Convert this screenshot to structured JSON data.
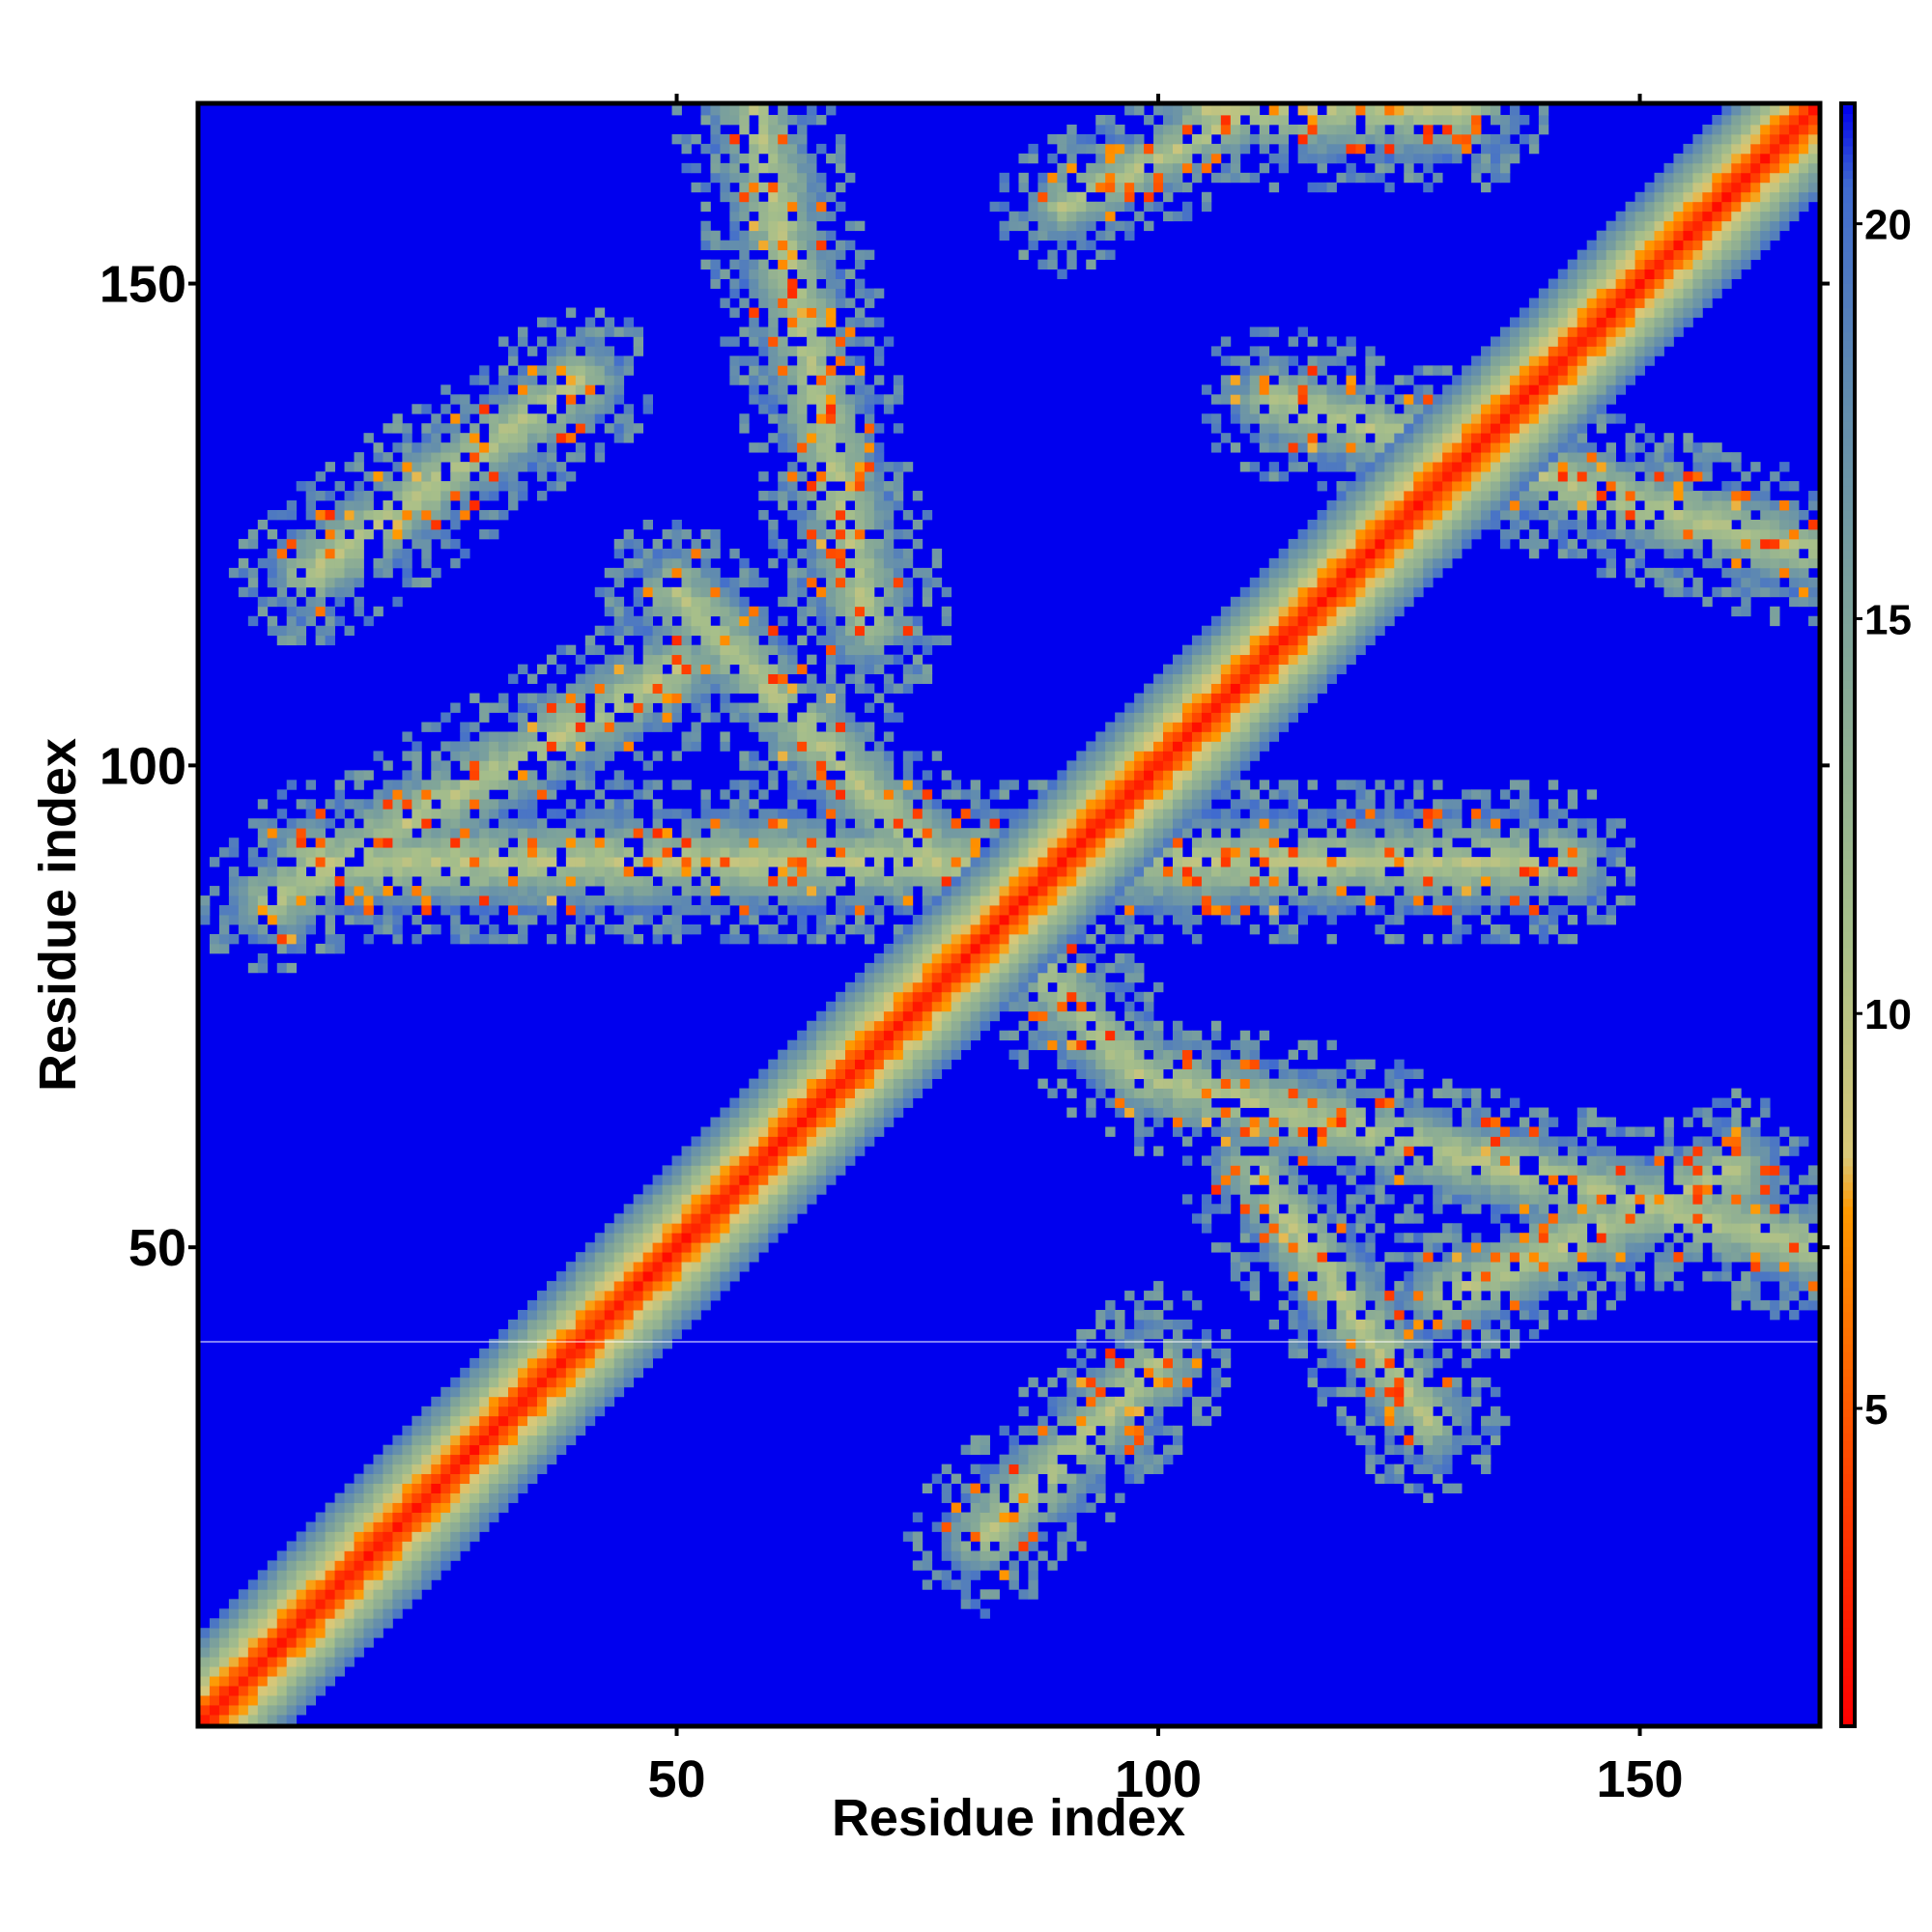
{
  "chart_data": {
    "type": "heatmap",
    "title": "",
    "xlabel": "Residue index",
    "ylabel": "Residue index",
    "xlim": [
      1,
      168
    ],
    "ylim": [
      1,
      168
    ],
    "x_ticks": [
      50,
      100,
      150
    ],
    "y_ticks": [
      50,
      100,
      150
    ],
    "x_tick_labels": [
      "50",
      "100",
      "150"
    ],
    "y_tick_labels": [
      "50",
      "100",
      "150"
    ],
    "n_residues": 168,
    "colorbar": {
      "range": [
        1,
        21.5
      ],
      "ticks": [
        5,
        10,
        15,
        20
      ],
      "tick_labels": [
        "5",
        "10",
        "15",
        "20"
      ],
      "colors": [
        {
          "value": 1,
          "color": "#ff0000"
        },
        {
          "value": 4,
          "color": "#ff4000"
        },
        {
          "value": 7.5,
          "color": "#ff9900"
        },
        {
          "value": 8.2,
          "color": "#d9c878"
        },
        {
          "value": 11,
          "color": "#a7bf8a"
        },
        {
          "value": 15,
          "color": "#7ea39a"
        },
        {
          "value": 18,
          "color": "#5f8ab0"
        },
        {
          "value": 20.5,
          "color": "#3f6ad0"
        },
        {
          "value": 21.5,
          "color": "#0000ee"
        }
      ]
    },
    "background_color": "#0000ee",
    "diagonal_band_halfwidth": 9,
    "contact_bands": [
      {
        "a": [
          58,
          168
        ],
        "b": [
          70,
          115
        ],
        "halfwidth": 5
      },
      {
        "a": [
          105,
          168
        ],
        "b": [
          132,
          168
        ],
        "halfwidth": 5
      },
      {
        "a": [
          12,
          90
        ],
        "b": [
          142,
          90
        ],
        "halfwidth": 5
      },
      {
        "a": [
          50,
          118
        ],
        "b": [
          98,
          68
        ],
        "halfwidth": 4.5
      },
      {
        "a": [
          98,
          68
        ],
        "b": [
          168,
          50
        ],
        "halfwidth": 4.5
      },
      {
        "a": [
          110,
          58
        ],
        "b": [
          128,
          32
        ],
        "halfwidth": 4.5
      },
      {
        "a": [
          130,
          45
        ],
        "b": [
          160,
          58
        ],
        "halfwidth": 4.5
      },
      {
        "a": [
          82,
          20
        ],
        "b": [
          100,
          38
        ],
        "halfwidth": 4.5
      },
      {
        "a": [
          8,
          86
        ],
        "b": [
          50,
          110
        ],
        "halfwidth": 4.5
      },
      {
        "a": [
          112,
          138
        ],
        "b": [
          168,
          122
        ],
        "halfwidth": 4.5
      },
      {
        "a": [
          12,
          120
        ],
        "b": [
          40,
          140
        ],
        "halfwidth": 4.5
      },
      {
        "a": [
          90,
          158
        ],
        "b": [
          110,
          168
        ],
        "halfwidth": 3.5
      }
    ]
  }
}
